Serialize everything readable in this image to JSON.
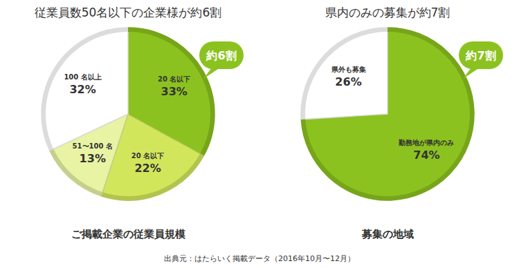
{
  "chart_data": [
    {
      "type": "pie",
      "title": "従業員数50名以下の企業様が約6割",
      "subtitle": "ご掲載企業の従業員規模",
      "annotation": "約6割",
      "categories": [
        "20 名以下",
        "20 名以下",
        "51〜100 名",
        "100 名以上"
      ],
      "values": [
        33,
        22,
        13,
        32
      ],
      "value_labels": [
        "33%",
        "22%",
        "13%",
        "32%"
      ],
      "colors": [
        "#8cc21f",
        "#d2e65c",
        "#e8f4a4",
        "#ffffff"
      ],
      "data_labels": true
    },
    {
      "type": "pie",
      "title": "県内のみの募集が約7割",
      "subtitle": "募集の地域",
      "annotation": "約7割",
      "categories": [
        "勤務地が県内のみ",
        "県外も募集"
      ],
      "values": [
        74,
        26
      ],
      "value_labels": [
        "74%",
        "26%"
      ],
      "colors": [
        "#8cc21f",
        "#ffffff"
      ],
      "data_labels": true
    }
  ],
  "source": "出典元：はたらいく掲載データ（2016年10月〜12月）"
}
